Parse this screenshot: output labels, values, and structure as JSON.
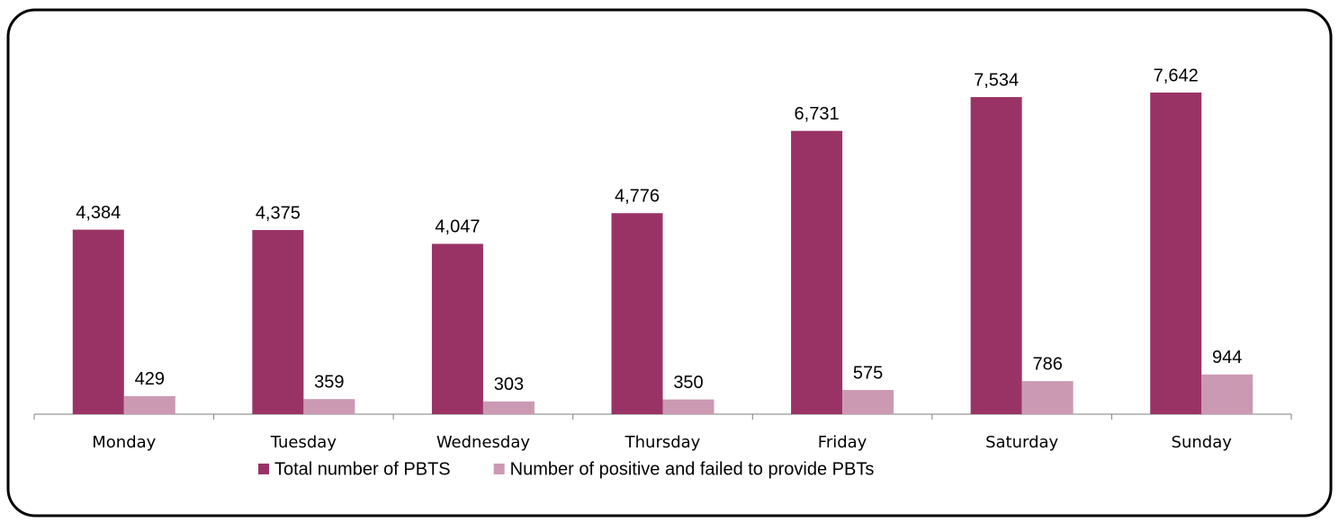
{
  "chart_data": {
    "type": "bar",
    "categories": [
      "Monday",
      "Tuesday",
      "Wednesday",
      "Thursday",
      "Friday",
      "Saturday",
      "Sunday"
    ],
    "series": [
      {
        "name": "Total number of PBTS",
        "color": "#993366",
        "values": [
          4384,
          4375,
          4047,
          4776,
          6731,
          7534,
          7642
        ],
        "value_labels": [
          "4,384",
          "4,375",
          "4,047",
          "4,776",
          "6,731",
          "7,534",
          "7,642"
        ]
      },
      {
        "name": "Number of positive and failed to provide PBTs",
        "color": "#cc99b3",
        "values": [
          429,
          359,
          303,
          350,
          575,
          786,
          944
        ],
        "value_labels": [
          "429",
          "359",
          "303",
          "350",
          "575",
          "786",
          "944"
        ]
      }
    ],
    "legend": "bottom"
  }
}
